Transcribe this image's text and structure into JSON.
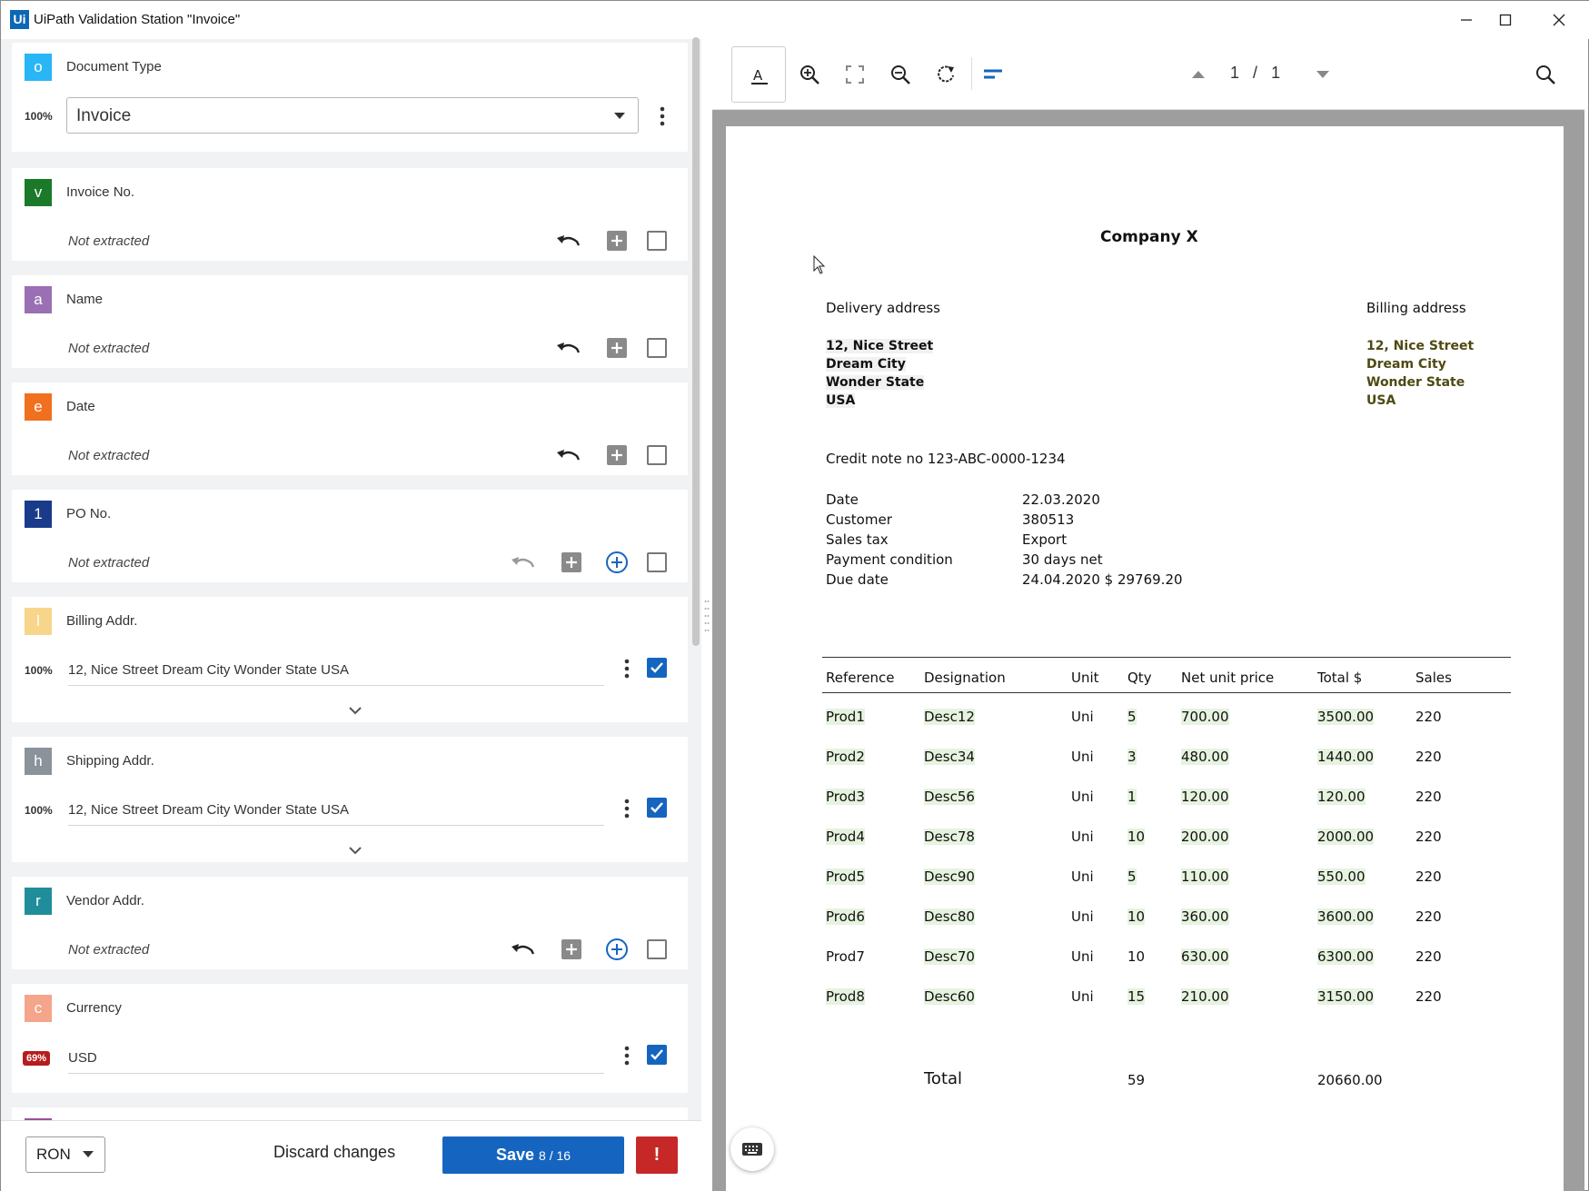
{
  "window": {
    "logo": "Ui",
    "title": "UiPath Validation Station \"Invoice\""
  },
  "document_type": {
    "badge": "o",
    "label": "Document Type",
    "confidence": "100%",
    "selected": "Invoice"
  },
  "fields": [
    {
      "badge": "v",
      "color": "#1b7a2a",
      "name": "Invoice No.",
      "value": "Not extracted",
      "extracted": false
    },
    {
      "badge": "a",
      "color": "#9a6fb3",
      "name": "Name",
      "value": "Not extracted",
      "extracted": false
    },
    {
      "badge": "e",
      "color": "#f07020",
      "name": "Date",
      "value": "Not extracted",
      "extracted": false
    },
    {
      "badge": "1",
      "color": "#1a3a8a",
      "name": "PO No.",
      "value": "Not extracted",
      "extracted": false
    },
    {
      "badge": "l",
      "color": "#f7d58a",
      "name": "Billing Addr.",
      "confidence": "100%",
      "value": "12, Nice Street Dream City Wonder State USA",
      "extracted": true
    },
    {
      "badge": "h",
      "color": "#8a929a",
      "name": "Shipping Addr.",
      "confidence": "100%",
      "value": "12, Nice Street Dream City Wonder State USA",
      "extracted": true
    },
    {
      "badge": "r",
      "color": "#1f8e9a",
      "name": "Vendor Addr.",
      "value": "Not extracted",
      "extracted": false
    },
    {
      "badge": "c",
      "color": "#f5a58a",
      "name": "Currency",
      "confidence": "69%",
      "value": "USD",
      "extracted": true
    }
  ],
  "bottom": {
    "currency": "RON",
    "discard": "Discard changes",
    "save": "Save",
    "save_count": "8 / 16",
    "alert": "!"
  },
  "viewer": {
    "page_current": "1",
    "page_sep": "/",
    "page_total": "1"
  },
  "document": {
    "company": "Company X",
    "delivery_label": "Delivery address",
    "billing_label": "Billing address",
    "address_lines": [
      "12, Nice Street",
      "Dream City",
      "Wonder State",
      "USA"
    ],
    "credit_note": "Credit note no 123-ABC-0000-1234",
    "info": [
      {
        "label": "Date",
        "value": "22.03.2020"
      },
      {
        "label": "Customer",
        "value": "380513"
      },
      {
        "label": "Sales tax",
        "value": "Export"
      },
      {
        "label": "Payment condition",
        "value": "30 days net"
      },
      {
        "label": "Due date",
        "value": "24.04.2020 $ 29769.20"
      }
    ],
    "table_headers": [
      "Reference",
      "Designation",
      "Unit",
      "Qty",
      "Net unit price",
      "Total $",
      "Sales"
    ],
    "rows": [
      [
        "Prod1",
        "Desc12",
        "Uni",
        "5",
        "700.00",
        "3500.00",
        "220"
      ],
      [
        "Prod2",
        "Desc34",
        "Uni",
        "3",
        "480.00",
        "1440.00",
        "220"
      ],
      [
        "Prod3",
        "Desc56",
        "Uni",
        "1",
        "120.00",
        "120.00",
        "220"
      ],
      [
        "Prod4",
        "Desc78",
        "Uni",
        "10",
        "200.00",
        "2000.00",
        "220"
      ],
      [
        "Prod5",
        "Desc90",
        "Uni",
        "5",
        "110.00",
        "550.00",
        "220"
      ],
      [
        "Prod6",
        "Desc80",
        "Uni",
        "10",
        "360.00",
        "3600.00",
        "220"
      ],
      [
        "Prod7",
        "Desc70",
        "Uni",
        "10",
        "630.00",
        "6300.00",
        "220"
      ],
      [
        "Prod8",
        "Desc60",
        "Uni",
        "15",
        "210.00",
        "3150.00",
        "220"
      ]
    ],
    "total_label": "Total",
    "total_qty": "59",
    "total_amount": "20660.00"
  }
}
